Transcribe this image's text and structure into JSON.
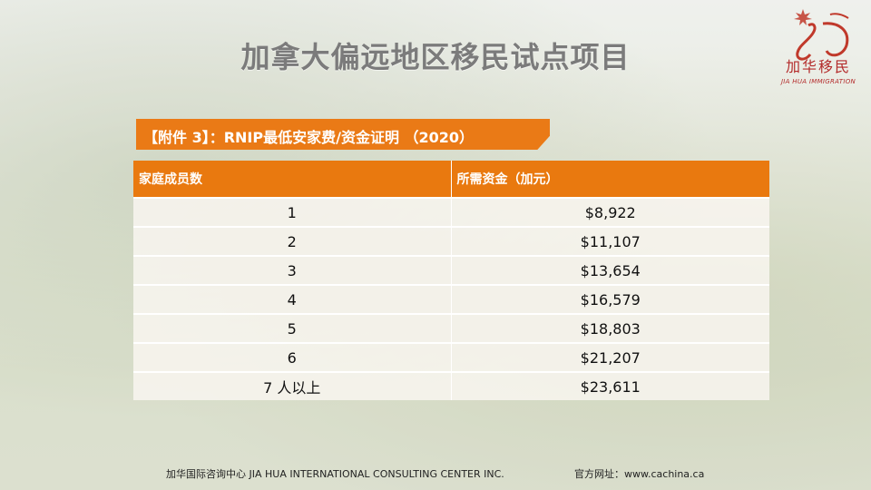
{
  "title": "加拿大偏远地区移民试点项目",
  "logo": {
    "chinese": "加华移民",
    "english": "JIA HUA IMMIGRATION",
    "accent": "#b32a2a"
  },
  "banner": {
    "text": "【附件 3】：RNIP最低安家费/资金证明 （2020）",
    "color": "#ea7a16"
  },
  "table": {
    "headers": [
      "家庭成员数",
      "所需资金（加元）"
    ],
    "rows": [
      [
        "1",
        "$8,922"
      ],
      [
        "2",
        "$11,107"
      ],
      [
        "3",
        "$13,654"
      ],
      [
        "4",
        "$16,579"
      ],
      [
        "5",
        "$18,803"
      ],
      [
        "6",
        "$21,207"
      ],
      [
        "7 人以上",
        "$23,611"
      ]
    ],
    "header_color": "#e9790f"
  },
  "footer": {
    "company": "加华国际咨询中心 JIA HUA INTERNATIONAL CONSULTING CENTER INC.",
    "website": "官方网址：www.cachina.ca"
  }
}
